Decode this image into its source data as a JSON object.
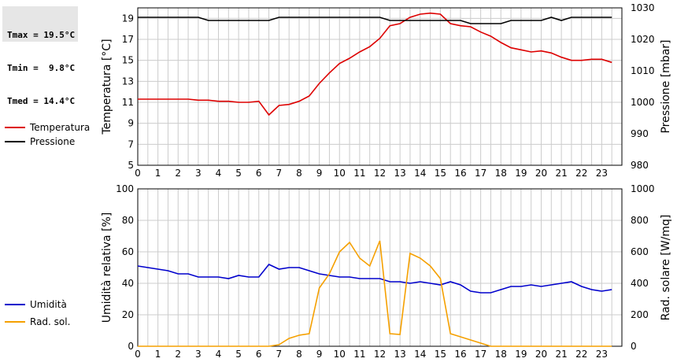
{
  "stats": {
    "tmax": "Tmax = 19.5°C",
    "tmin": "Tmin =  9.8°C",
    "tmed": "Tmed = 14.4°C"
  },
  "colors": {
    "temperature": "#dd0000",
    "pressure": "#000000",
    "humidity": "#0000cc",
    "solar": "#f5a000",
    "grid": "#cccccc"
  },
  "chart_data": [
    {
      "type": "line",
      "title": "",
      "xlabel": "",
      "ylabel": "Temperatura [°C]",
      "y2label": "Pressione [mbar]",
      "x_ticks": [
        "0",
        "1",
        "2",
        "3",
        "4",
        "5",
        "6",
        "7",
        "8",
        "9",
        "10",
        "11",
        "12",
        "13",
        "14",
        "15",
        "16",
        "17",
        "18",
        "19",
        "20",
        "21",
        "22",
        "23"
      ],
      "xlim": [
        0,
        24
      ],
      "ylim": [
        5,
        20
      ],
      "y_ticks": [
        "5",
        "7",
        "9",
        "11",
        "13",
        "15",
        "17",
        "19"
      ],
      "y2lim": [
        980,
        1030
      ],
      "y2_ticks": [
        "980",
        "990",
        "1000",
        "1010",
        "1020",
        "1030"
      ],
      "grid": true,
      "legend": "left",
      "series": [
        {
          "name": "Temperatura",
          "axis": "left",
          "x": [
            0,
            0.5,
            1,
            1.5,
            2,
            2.5,
            3,
            3.5,
            4,
            4.5,
            5,
            5.5,
            6,
            6.5,
            7,
            7.5,
            8,
            8.5,
            9,
            9.5,
            10,
            10.5,
            11,
            11.5,
            12,
            12.5,
            13,
            13.5,
            14,
            14.5,
            15,
            15.5,
            16,
            16.5,
            17,
            17.5,
            18,
            18.5,
            19,
            19.5,
            20,
            20.5,
            21,
            21.5,
            22,
            22.5,
            23,
            23.5
          ],
          "values": [
            11.3,
            11.3,
            11.3,
            11.3,
            11.3,
            11.3,
            11.2,
            11.2,
            11.1,
            11.1,
            11.0,
            11.0,
            11.1,
            9.8,
            10.7,
            10.8,
            11.1,
            11.6,
            12.8,
            13.8,
            14.7,
            15.2,
            15.8,
            16.3,
            17.1,
            18.3,
            18.5,
            19.1,
            19.4,
            19.5,
            19.4,
            18.5,
            18.3,
            18.2,
            17.7,
            17.3,
            16.7,
            16.2,
            16.0,
            15.8,
            15.9,
            15.7,
            15.3,
            15.0,
            15.0,
            15.1,
            15.1,
            14.8
          ]
        },
        {
          "name": "Pressione",
          "axis": "right",
          "x": [
            0,
            0.5,
            1,
            1.5,
            2,
            2.5,
            3,
            3.5,
            4,
            4.5,
            5,
            5.5,
            6,
            6.5,
            7,
            7.5,
            8,
            8.5,
            9,
            9.5,
            10,
            10.5,
            11,
            11.5,
            12,
            12.5,
            13,
            13.5,
            14,
            14.5,
            15,
            15.5,
            16,
            16.5,
            17,
            17.5,
            18,
            18.5,
            19,
            19.5,
            20,
            20.5,
            21,
            21.5,
            22,
            22.5,
            23,
            23.5
          ],
          "values": [
            1027,
            1027,
            1027,
            1027,
            1027,
            1027,
            1027,
            1026,
            1026,
            1026,
            1026,
            1026,
            1026,
            1026,
            1027,
            1027,
            1027,
            1027,
            1027,
            1027,
            1027,
            1027,
            1027,
            1027,
            1027,
            1026,
            1026,
            1026,
            1026,
            1026,
            1026,
            1026,
            1026,
            1025,
            1025,
            1025,
            1025,
            1026,
            1026,
            1026,
            1026,
            1027,
            1026,
            1027,
            1027,
            1027,
            1027,
            1027
          ]
        }
      ]
    },
    {
      "type": "line",
      "title": "",
      "xlabel": "",
      "ylabel": "Umidità relativa [%]",
      "y2label": "Rad. solare [W/mq]",
      "x_ticks": [
        "0",
        "1",
        "2",
        "3",
        "4",
        "5",
        "6",
        "7",
        "8",
        "9",
        "10",
        "11",
        "12",
        "13",
        "14",
        "15",
        "16",
        "17",
        "18",
        "19",
        "20",
        "21",
        "22",
        "23"
      ],
      "xlim": [
        0,
        24
      ],
      "ylim": [
        0,
        100
      ],
      "y_ticks": [
        "0",
        "20",
        "40",
        "60",
        "80",
        "100"
      ],
      "y2lim": [
        0,
        1000
      ],
      "y2_ticks": [
        "0",
        "200",
        "400",
        "600",
        "800",
        "1000"
      ],
      "grid": true,
      "legend": "left",
      "series": [
        {
          "name": "Umidità",
          "axis": "left",
          "x": [
            0,
            0.5,
            1,
            1.5,
            2,
            2.5,
            3,
            3.5,
            4,
            4.5,
            5,
            5.5,
            6,
            6.5,
            7,
            7.5,
            8,
            8.5,
            9,
            9.5,
            10,
            10.5,
            11,
            11.5,
            12,
            12.5,
            13,
            13.5,
            14,
            14.5,
            15,
            15.5,
            16,
            16.5,
            17,
            17.5,
            18,
            18.5,
            19,
            19.5,
            20,
            20.5,
            21,
            21.5,
            22,
            22.5,
            23,
            23.5
          ],
          "values": [
            51,
            50,
            49,
            48,
            46,
            46,
            44,
            44,
            44,
            43,
            45,
            44,
            44,
            52,
            49,
            50,
            50,
            48,
            46,
            45,
            44,
            44,
            43,
            43,
            43,
            41,
            41,
            40,
            41,
            40,
            39,
            41,
            39,
            35,
            34,
            34,
            36,
            38,
            38,
            39,
            38,
            39,
            40,
            41,
            38,
            36,
            35,
            36
          ]
        },
        {
          "name": "Rad. sol.",
          "axis": "right",
          "x": [
            0,
            0.5,
            1,
            1.5,
            2,
            2.5,
            3,
            3.5,
            4,
            4.5,
            5,
            5.5,
            6,
            6.5,
            7,
            7.5,
            8,
            8.5,
            9,
            9.5,
            10,
            10.5,
            11,
            11.5,
            12,
            12.5,
            13,
            13.5,
            14,
            14.5,
            15,
            15.5,
            16,
            16.5,
            17,
            17.5,
            18,
            18.5,
            19,
            19.5,
            20,
            20.5,
            21,
            21.5,
            22,
            22.5,
            23,
            23.5
          ],
          "values": [
            0,
            0,
            0,
            0,
            0,
            0,
            0,
            0,
            0,
            0,
            0,
            0,
            0,
            0,
            10,
            50,
            70,
            80,
            370,
            460,
            600,
            660,
            560,
            510,
            670,
            80,
            75,
            590,
            560,
            510,
            430,
            80,
            60,
            40,
            20,
            0,
            0,
            0,
            0,
            0,
            0,
            0,
            0,
            0,
            0,
            0,
            0,
            0
          ]
        }
      ]
    }
  ]
}
